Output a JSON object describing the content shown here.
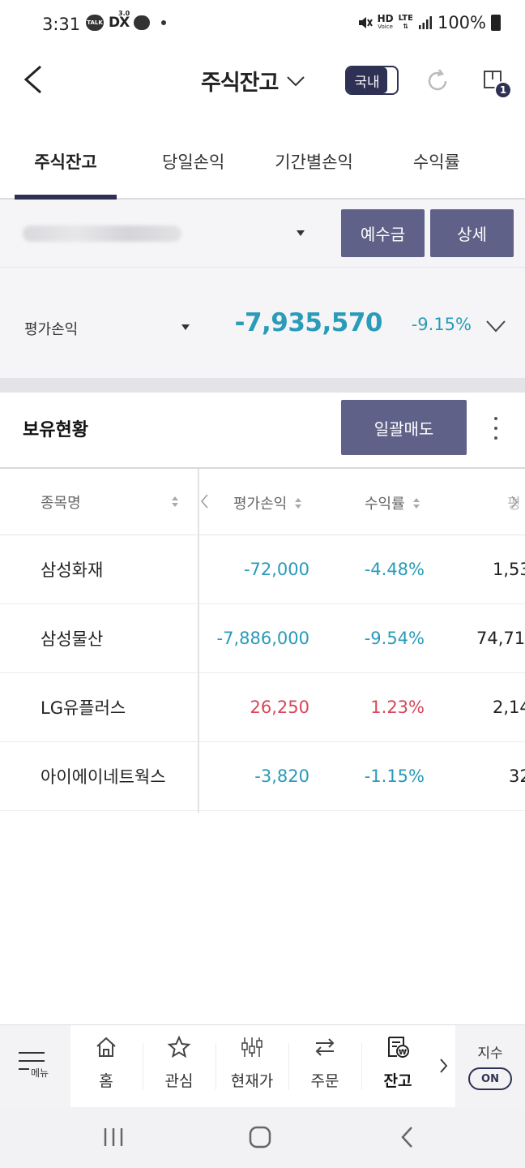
{
  "status_bar": {
    "time": "3:31",
    "talk_badge": "TALK",
    "dx_label": "DX",
    "dx_version": "3.0",
    "hd_label": "HD",
    "voice_label": "Voice",
    "lte_label": "LTE",
    "battery": "100%"
  },
  "header": {
    "title": "주식잔고",
    "market_toggle": "국내",
    "window_badge": "1"
  },
  "tabs": [
    {
      "label": "주식잔고",
      "active": true
    },
    {
      "label": "당일손익",
      "active": false
    },
    {
      "label": "기간별손익",
      "active": false
    },
    {
      "label": "수익률",
      "active": false
    }
  ],
  "account": {
    "deposit_button": "예수금",
    "detail_button": "상세"
  },
  "summary": {
    "label": "평가손익",
    "value": "-7,935,570",
    "rate": "-9.15%"
  },
  "holdings": {
    "title": "보유현황",
    "sell_all_button": "일괄매도"
  },
  "table": {
    "columns": {
      "name": "종목명",
      "pnl": "평가손익",
      "rate": "수익률",
      "partial": "평"
    },
    "rows": [
      {
        "name": "삼성화재",
        "pnl": "-72,000",
        "rate": "-4.48%",
        "partial": "1,53",
        "sign": "neg"
      },
      {
        "name": "삼성물산",
        "pnl": "-7,886,000",
        "rate": "-9.54%",
        "partial": "74,71",
        "sign": "neg"
      },
      {
        "name": "LG유플러스",
        "pnl": "26,250",
        "rate": "1.23%",
        "partial": "2,14",
        "sign": "pos"
      },
      {
        "name": "아이에이네트웍스",
        "pnl": "-3,820",
        "rate": "-1.15%",
        "partial": "32",
        "sign": "neg"
      }
    ]
  },
  "bottom_nav": {
    "menu": "메뉴",
    "items": [
      {
        "label": "홈",
        "icon": "home-icon"
      },
      {
        "label": "관심",
        "icon": "star-icon"
      },
      {
        "label": "현재가",
        "icon": "candlestick-icon"
      },
      {
        "label": "주문",
        "icon": "swap-arrows-icon"
      },
      {
        "label": "잔고",
        "icon": "balance-icon",
        "active": true
      }
    ],
    "index_label": "지수",
    "index_toggle": "ON"
  },
  "colors": {
    "negative": "#2a9bb8",
    "positive": "#d9465a",
    "brand": "#2f3154",
    "button": "#5f6188"
  }
}
